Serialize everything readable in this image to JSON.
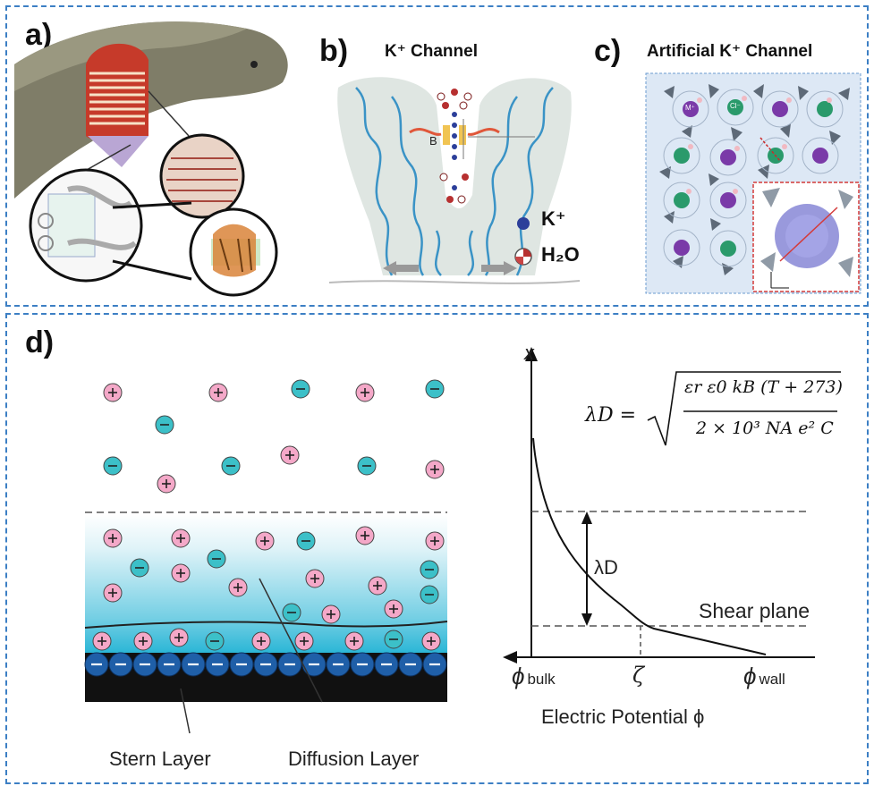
{
  "panels": {
    "a": {
      "letter": "a)"
    },
    "b": {
      "letter": "b)",
      "title": "K⁺ Channel",
      "inner_label": "B",
      "legend": [
        {
          "label": "K⁺"
        },
        {
          "label": "H₂O"
        }
      ]
    },
    "c": {
      "letter": "c)",
      "title": "Artificial K⁺ Channel",
      "ion_labels": {
        "metal": "M⁺",
        "chloride": "Cl⁻"
      }
    },
    "d": {
      "letter": "d)",
      "layer_labels": {
        "stern": "Stern Layer",
        "diffusion": "Diffusion Layer"
      },
      "plot": {
        "y_axis_label": "x",
        "x_axis_label": "Electric Potential ϕ",
        "x_ticks": [
          {
            "symbol": "ϕ",
            "sub": "bulk"
          },
          {
            "symbol": "ζ",
            "sub": ""
          },
          {
            "symbol": "ϕ",
            "sub": "wall"
          }
        ],
        "debye_label": "λD",
        "shear_plane_label": "Shear plane"
      },
      "equation": {
        "lhs": "λD =",
        "numerator": "εr ε0 kB (T + 273)",
        "denominator": "2 × 10³ NA e² C"
      }
    }
  },
  "colors": {
    "frame_border": "#3c7fc4",
    "cation_fill": "#f4a8c8",
    "anion_fill": "#3cc0c8",
    "surface_charge": "#1f5fa8",
    "gradient_top": "#dff3f8",
    "gradient_bottom": "#2bb6d6",
    "channel_gray": "#dfe6e2",
    "helix_blue": "#3a93c6"
  }
}
